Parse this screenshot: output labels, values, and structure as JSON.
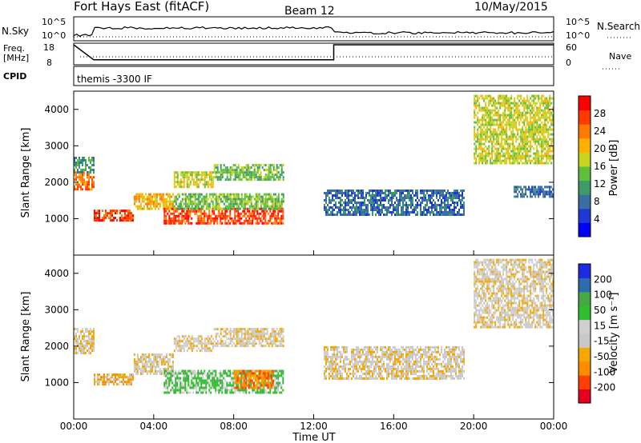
{
  "header": {
    "radar": "Fort Hays East (fitACF)",
    "beam": "Beam 12",
    "date": "10/May/2015"
  },
  "noise_panel": {
    "left_label": "N.Sky",
    "right_label": "N.Search",
    "ticks_left": [
      "10^5",
      "10^0"
    ],
    "ticks_right": [
      "10^5",
      "10^0"
    ]
  },
  "freq_panel": {
    "left_label_1": "Freq.",
    "left_label_2": "[MHz]",
    "ticks_left": [
      "18",
      "8"
    ],
    "ticks_right": [
      "60",
      "0"
    ],
    "right_label": "Nave",
    "freq_mhz": [
      [
        0,
        18
      ],
      [
        1,
        10.5
      ],
      [
        13,
        10.5
      ],
      [
        13,
        18
      ],
      [
        24,
        18
      ]
    ]
  },
  "cpid_panel": {
    "left_label": "CPID",
    "program": "themis -3300 IF"
  },
  "colors": {
    "power": [
      "#0000ff",
      "#1e3ad0",
      "#3a6ea5",
      "#3f9a6a",
      "#5fbe3a",
      "#c8d41e",
      "#ffb000",
      "#ff7a00",
      "#ff3a00",
      "#ff0000"
    ],
    "velocity": [
      "#e6001e",
      "#ff4000",
      "#ff8c00",
      "#f5a800",
      "#c8c8c8",
      "#cfcfcf",
      "#2fbf2f",
      "#44aa44",
      "#2f6bb0",
      "#1e2ae0"
    ]
  },
  "chart_data": [
    {
      "type": "heatmap",
      "name": "power",
      "ylabel": "Slant Range [km]",
      "ylim": [
        0,
        4500
      ],
      "yticks": [
        "1000",
        "2000",
        "3000",
        "4000"
      ],
      "colorbar_label": "Power [dB]",
      "colorbar_ticks": [
        "4",
        "8",
        "12",
        "16",
        "20",
        "24",
        "28"
      ],
      "bands": [
        {
          "t0": 0.0,
          "t1": 1.0,
          "r0": 1800,
          "r1": 2300,
          "level": 7
        },
        {
          "t0": 0.0,
          "t1": 1.0,
          "r0": 2300,
          "r1": 2700,
          "level": 3
        },
        {
          "t0": 1.0,
          "t1": 3.0,
          "r0": 950,
          "r1": 1250,
          "level": 8
        },
        {
          "t0": 3.0,
          "t1": 5.0,
          "r0": 1250,
          "r1": 1700,
          "level": 6
        },
        {
          "t0": 5.0,
          "t1": 7.0,
          "r0": 1900,
          "r1": 2300,
          "level": 5
        },
        {
          "t0": 4.5,
          "t1": 10.5,
          "r0": 850,
          "r1": 1300,
          "level": 8
        },
        {
          "t0": 5.0,
          "t1": 10.5,
          "r0": 1300,
          "r1": 1700,
          "level": 4
        },
        {
          "t0": 7.0,
          "t1": 10.5,
          "r0": 2100,
          "r1": 2500,
          "level": 4
        },
        {
          "t0": 12.5,
          "t1": 19.5,
          "r0": 1100,
          "r1": 1800,
          "level": 2
        },
        {
          "t0": 20.0,
          "t1": 24.0,
          "r0": 2500,
          "r1": 4400,
          "level": 5
        },
        {
          "t0": 22.0,
          "t1": 24.0,
          "r0": 1600,
          "r1": 1900,
          "level": 2
        }
      ]
    },
    {
      "type": "heatmap",
      "name": "velocity",
      "ylabel": "Slant Range [km]",
      "ylim": [
        0,
        4500
      ],
      "yticks": [
        "1000",
        "2000",
        "3000",
        "4000"
      ],
      "colorbar_label": "Velocity [m s⁻¹]",
      "colorbar_ticks": [
        "-200",
        "-100",
        "-50",
        "-15",
        "15",
        "50",
        "100",
        "200"
      ],
      "bands": [
        {
          "t0": 0.0,
          "t1": 1.0,
          "r0": 1800,
          "r1": 2500,
          "level": 4
        },
        {
          "t0": 1.0,
          "t1": 3.0,
          "r0": 950,
          "r1": 1250,
          "level": 3
        },
        {
          "t0": 3.0,
          "t1": 5.0,
          "r0": 1250,
          "r1": 1800,
          "level": 4
        },
        {
          "t0": 5.0,
          "t1": 7.0,
          "r0": 1900,
          "r1": 2300,
          "level": 4
        },
        {
          "t0": 4.5,
          "t1": 10.5,
          "r0": 700,
          "r1": 1350,
          "level": 6
        },
        {
          "t0": 8.0,
          "t1": 10.0,
          "r0": 850,
          "r1": 1350,
          "level": 2
        },
        {
          "t0": 7.0,
          "t1": 10.5,
          "r0": 2000,
          "r1": 2500,
          "level": 4
        },
        {
          "t0": 12.5,
          "t1": 19.5,
          "r0": 1100,
          "r1": 2000,
          "level": 4
        },
        {
          "t0": 20.0,
          "t1": 24.0,
          "r0": 2500,
          "r1": 4400,
          "level": 4
        }
      ]
    }
  ],
  "x_axis": {
    "xlabel": "Time UT",
    "xlim": [
      0,
      24
    ],
    "ticks": [
      {
        "t": 0,
        "label": "00:00"
      },
      {
        "t": 4,
        "label": "04:00"
      },
      {
        "t": 8,
        "label": "08:00"
      },
      {
        "t": 12,
        "label": "12:00"
      },
      {
        "t": 16,
        "label": "16:00"
      },
      {
        "t": 20,
        "label": "20:00"
      },
      {
        "t": 24,
        "label": "00:00"
      }
    ]
  }
}
